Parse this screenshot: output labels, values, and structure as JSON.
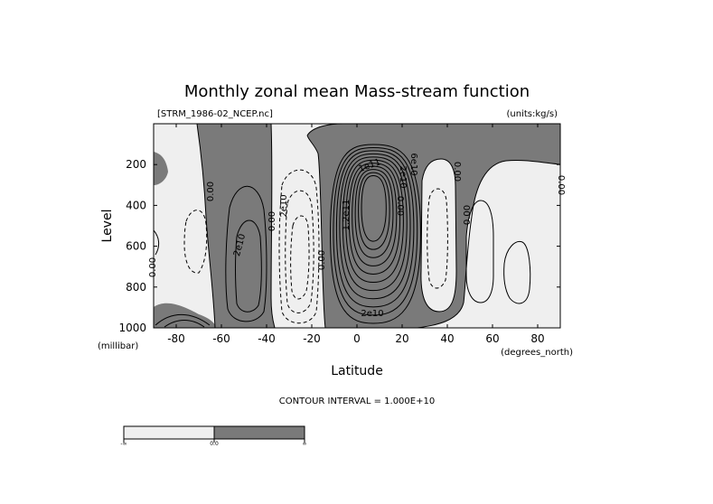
{
  "chart_data": {
    "type": "contour",
    "title": "Monthly zonal mean Mass-stream function",
    "file_label": "[STRM_1986-02_NCEP.nc]",
    "units_label": "(units:kg/s)",
    "xlabel": "Latitude",
    "x_unit_label": "(degrees_north)",
    "ylabel": "Level",
    "y_unit_label": "(millibar)",
    "xlim": [
      -90,
      90
    ],
    "ylim": [
      1000,
      0
    ],
    "x_ticks": [
      -80,
      -60,
      -40,
      -20,
      0,
      20,
      40,
      60,
      80
    ],
    "y_ticks": [
      200,
      400,
      600,
      800,
      1000
    ],
    "contour_interval_label": "CONTOUR INTERVAL = 1.000E+10",
    "contour_labels": [
      "0.00",
      "0.00",
      "0.00",
      "0.00",
      "0.00",
      "0.00",
      "0.00",
      "0.00",
      "2e10",
      "2e10",
      "2e10",
      "1.2e11",
      "1e11",
      "6e10",
      "2e10"
    ],
    "colorbar": {
      "tick_labels": [
        "-∞",
        "0.0",
        "∞"
      ],
      "colors": [
        "#efefef",
        "#7a7a7a"
      ]
    }
  }
}
